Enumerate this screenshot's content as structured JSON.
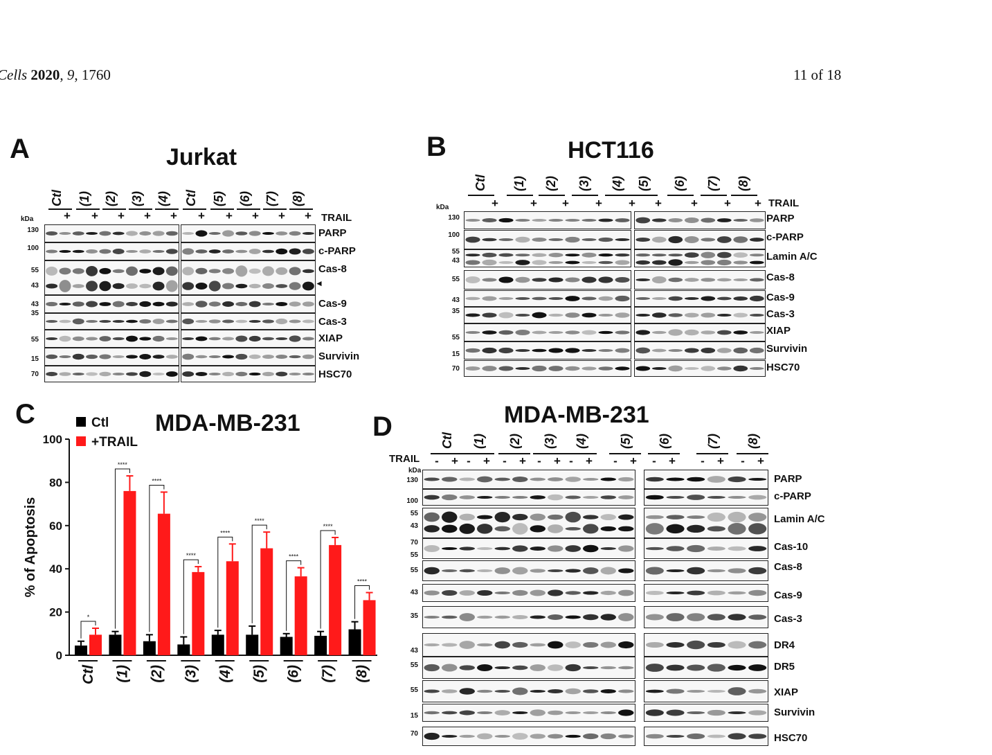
{
  "page_header": {
    "journal": "Cells",
    "year": "2020",
    "volume": "9",
    "article": "1760",
    "page": "11 of 18"
  },
  "panel_A": {
    "letter": "A",
    "title": "Jurkat",
    "treatment_label": "TRAIL",
    "kda_label": "kDa",
    "lanes": [
      "Ctl",
      "(1)",
      "(2)",
      "(3)",
      "(4)",
      "Ctl",
      "(5)",
      "(6)",
      "(7)",
      "(8)"
    ],
    "plus_sign": "+",
    "proteins": [
      "PARP",
      "c-PARP",
      "Cas-8",
      "Cas-9",
      "Cas-3",
      "XIAP",
      "Survivin",
      "HSC70"
    ],
    "markers": [
      "130",
      "100",
      "55",
      "43",
      "43",
      "35",
      "55",
      "15",
      "70"
    ]
  },
  "panel_B": {
    "letter": "B",
    "title": "HCT116",
    "treatment_label": "TRAIL",
    "kda_label": "kDa",
    "lanes": [
      "Ctl",
      "(1)",
      "(2)",
      "(3)",
      "(4)",
      "(5)",
      "(6)",
      "(7)",
      "(8)"
    ],
    "plus_sign": "+",
    "proteins": [
      "PARP",
      "c-PARP",
      "Lamin A/C",
      "Cas-8",
      "Cas-9",
      "Cas-3",
      "XIAP",
      "Survivin",
      "HSC70"
    ],
    "markers": [
      "130",
      "100",
      "55",
      "43",
      "55",
      "43",
      "35",
      "55",
      "15",
      "70"
    ]
  },
  "panel_C": {
    "letter": "C",
    "title": "MDA-MB-231"
  },
  "chart_data": {
    "type": "bar",
    "title": "MDA-MB-231",
    "ylabel": "% of Apoptosis",
    "xlabel": "",
    "ylim": [
      0,
      100
    ],
    "yticks": [
      0,
      20,
      40,
      60,
      80,
      100
    ],
    "categories": [
      "Ctl",
      "(1)",
      "(2)",
      "(3)",
      "(4)",
      "(5)",
      "(6)",
      "(7)",
      "(8)"
    ],
    "legend_position": "top-left",
    "series": [
      {
        "name": "Ctl",
        "color": "#000000",
        "values": [
          4.5,
          9.5,
          6.5,
          5,
          9.5,
          9.5,
          8.5,
          9,
          12
        ],
        "errors": [
          2,
          1.5,
          3,
          3.5,
          2,
          4,
          1.5,
          2,
          3.5
        ]
      },
      {
        "name": "+TRAIL",
        "color": "#ff1a1a",
        "values": [
          9.5,
          76,
          65.5,
          38.5,
          43.5,
          49.5,
          36.5,
          51,
          25.5
        ],
        "errors": [
          3,
          7,
          10,
          2.5,
          8,
          7.5,
          4,
          3.5,
          3.5
        ]
      }
    ],
    "significance": [
      "*",
      "****",
      "****",
      "****",
      "****",
      "****",
      "****",
      "****",
      "****"
    ]
  },
  "panel_D": {
    "letter": "D",
    "title": "MDA-MB-231",
    "treatment_label": "TRAIL",
    "kda_label": "kDa",
    "lanes": [
      "Ctl",
      "(1)",
      "(2)",
      "(3)",
      "(4)",
      "(5)",
      "(6)",
      "(7)",
      "(8)"
    ],
    "minus_sign": "-",
    "plus_sign": "+",
    "proteins": [
      "PARP",
      "c-PARP",
      "Lamin A/C",
      "Cas-10",
      "Cas-8",
      "Cas-9",
      "Cas-3",
      "DR4",
      "DR5",
      "XIAP",
      "Survivin",
      "HSC70"
    ],
    "markers": [
      "130",
      "100",
      "55",
      "43",
      "70",
      "55",
      "55",
      "43",
      "35",
      "43",
      "55",
      "55",
      "15",
      "70"
    ]
  }
}
